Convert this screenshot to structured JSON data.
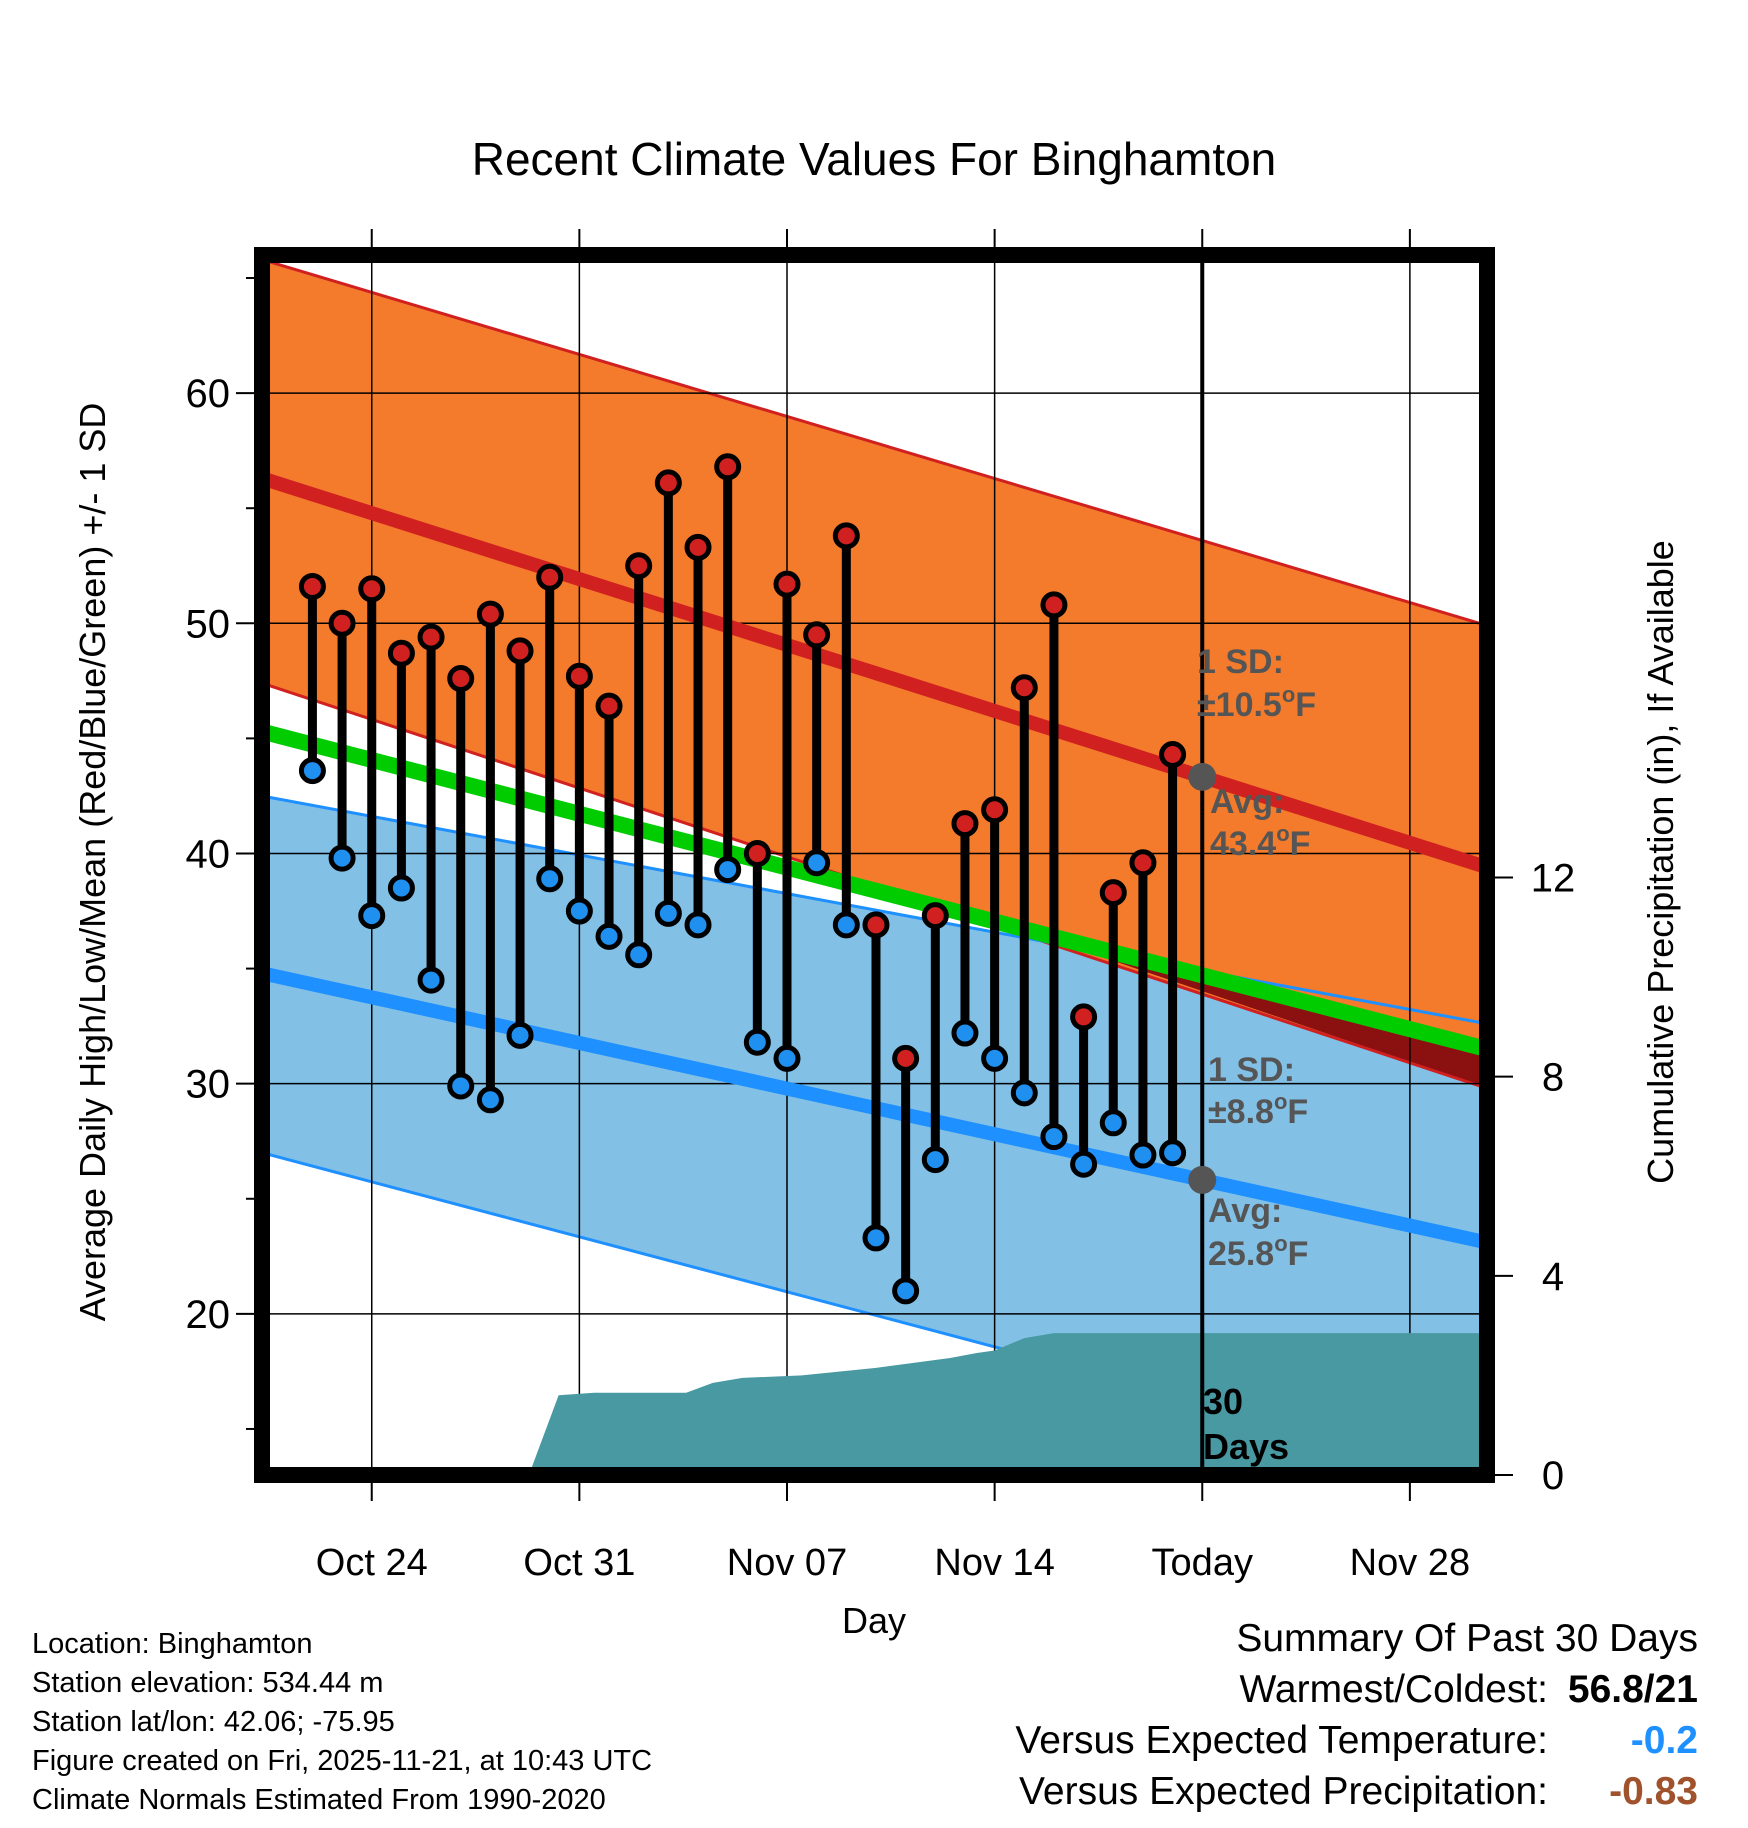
{
  "chart_data": {
    "type": "line",
    "title": "Recent Climate Values For Binghamton",
    "xlabel": "Day",
    "ylabel": "Average Daily High/Low/Mean (Red/Blue/Green) +/- 1 SD",
    "y2label": "Cumulative Precipitation (in), If Available",
    "ylim": [
      13,
      66
    ],
    "y2lim": [
      0,
      24.5
    ],
    "yticks": [
      20,
      30,
      40,
      50,
      60
    ],
    "y2ticks": [
      0,
      4,
      8,
      12
    ],
    "xlim": [
      -3.7,
      37.6
    ],
    "xticks": [
      {
        "day": 0,
        "label": "Oct 24"
      },
      {
        "day": 7,
        "label": "Oct 31"
      },
      {
        "day": 14,
        "label": "Nov 07"
      },
      {
        "day": 21,
        "label": "Nov 14"
      },
      {
        "day": 28,
        "label": "Today"
      },
      {
        "day": 35,
        "label": "Nov 28"
      }
    ],
    "today_day": 28,
    "normals": {
      "high_avg": [
        [
          -3.7,
          56.3
        ],
        [
          37.6,
          39.4
        ]
      ],
      "high_upper": [
        [
          -3.7,
          65.8
        ],
        [
          37.6,
          49.9
        ]
      ],
      "high_lower": [
        [
          -3.7,
          47.4
        ],
        [
          37.6,
          29.8
        ]
      ],
      "mean_avg": [
        [
          -3.7,
          45.3
        ],
        [
          37.6,
          31.5
        ]
      ],
      "low_avg": [
        [
          -3.7,
          34.8
        ],
        [
          37.6,
          23.1
        ]
      ],
      "low_upper": [
        [
          -3.7,
          42.5
        ],
        [
          37.6,
          32.6
        ]
      ],
      "low_lower": [
        [
          -3.7,
          27.0
        ],
        [
          37.6,
          12.9
        ]
      ]
    },
    "series": [
      {
        "name": "Daily High",
        "color": "#d02020",
        "values": [
          51.6,
          50.0,
          51.5,
          48.7,
          49.4,
          47.6,
          50.4,
          48.8,
          52.0,
          47.7,
          46.4,
          52.5,
          56.1,
          53.3,
          56.8,
          40.0,
          51.7,
          49.5,
          53.8,
          36.9,
          31.1,
          37.3,
          41.3,
          41.9,
          47.2,
          50.8,
          32.9,
          38.3,
          39.6,
          44.3
        ]
      },
      {
        "name": "Daily Low",
        "color": "#2090f0",
        "values": [
          43.6,
          39.8,
          37.3,
          38.5,
          34.5,
          29.9,
          29.3,
          32.1,
          38.9,
          37.5,
          36.4,
          35.6,
          37.4,
          36.9,
          39.3,
          31.8,
          31.1,
          39.6,
          36.9,
          23.3,
          21.0,
          26.7,
          32.2,
          31.1,
          29.6,
          27.7,
          26.5,
          28.3,
          26.9,
          27.0
        ]
      }
    ],
    "days": [
      -2,
      -1,
      0,
      1,
      2,
      3,
      4,
      5,
      6,
      7,
      8,
      9,
      10,
      11,
      12,
      13,
      14,
      15,
      16,
      17,
      18,
      19,
      20,
      21,
      22,
      23,
      24,
      25,
      26,
      27
    ],
    "precip_cumulative": [
      [
        5.3,
        0
      ],
      [
        6.3,
        1.6
      ],
      [
        7.5,
        1.65
      ],
      [
        10.6,
        1.65
      ],
      [
        11.5,
        1.85
      ],
      [
        12.5,
        1.95
      ],
      [
        14.5,
        2.0
      ],
      [
        17.0,
        2.15
      ],
      [
        19.5,
        2.35
      ],
      [
        20.4,
        2.45
      ],
      [
        21.0,
        2.5
      ],
      [
        22.0,
        2.75
      ],
      [
        23.0,
        2.85
      ],
      [
        37.6,
        2.85
      ]
    ],
    "annotations": {
      "high_sd_title": "1 SD:",
      "high_sd_value": "±10.5",
      "high_avg_title": "Avg:",
      "high_avg_value": "43.4",
      "low_sd_title": "1 SD:",
      "low_sd_value": "±8.8",
      "low_avg_title": "Avg:",
      "low_avg_value": "25.8",
      "unit_o": "o",
      "unit_f": "F",
      "days_number": "30",
      "days_word": "Days"
    },
    "colors": {
      "high_band": "#f47a2c",
      "high_line": "#d02020",
      "low_band": "#82c0e6",
      "low_line": "#1e90ff",
      "mean_line": "#00cc00",
      "precip": "#4899a2",
      "annotation": "#555555",
      "dark_red": "#8b1010"
    }
  },
  "info": {
    "location": "Location: Binghamton",
    "elevation": "Station elevation: 534.44 m",
    "latlon": "Station lat/lon: 42.06; -75.95",
    "created": "Figure created on Fri, 2025-11-21, at 10:43 UTC",
    "normals": "Climate Normals Estimated From 1990-2020"
  },
  "summary": {
    "title": "Summary Of Past 30 Days",
    "warmest_label": "Warmest/Coldest:",
    "warmest_value": "56.8/21",
    "temp_label": "Versus Expected Temperature:",
    "temp_value": "-0.2",
    "temp_color": "#1e90ff",
    "precip_label": "Versus Expected Precipitation:",
    "precip_value": "-0.83",
    "precip_color": "#a0522d"
  }
}
